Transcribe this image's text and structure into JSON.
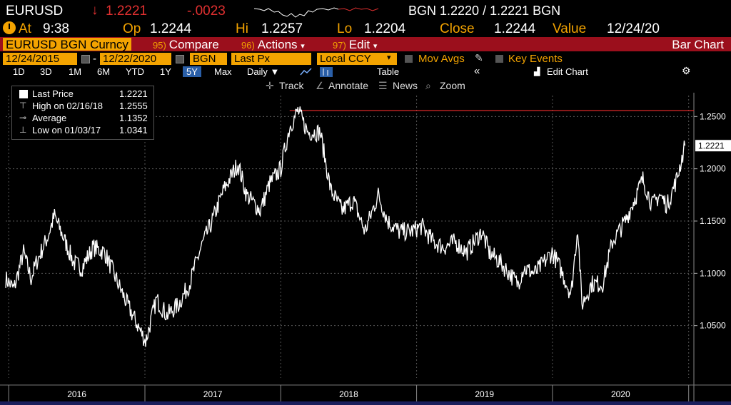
{
  "header": {
    "symbol": "EURUSD",
    "arrow": "↓",
    "last": "1.2221",
    "change": "-.0023",
    "bid_ask": "BGN 1.2220 / 1.2221 BGN"
  },
  "quote": {
    "at_label": "At",
    "at_value": "9:38",
    "op_label": "Op",
    "op_value": "1.2244",
    "hi_label": "Hi",
    "hi_value": "1.2257",
    "lo_label": "Lo",
    "lo_value": "1.2204",
    "close_label": "Close",
    "close_value": "1.2244",
    "value_label": "Value",
    "value_value": "12/24/20"
  },
  "menubar": {
    "ticker": "EURUSD BGN Curncy",
    "compare_num": "95)",
    "compare": "Compare",
    "actions_num": "96)",
    "actions": "Actions",
    "edit_num": "97)",
    "edit": "Edit",
    "bar_chart": "Bar Chart"
  },
  "params": {
    "start_date": "12/24/2015",
    "dash": "-",
    "end_date": "12/22/2020",
    "source": "BGN",
    "field": "Last Px",
    "ccy": "Local CCY",
    "mov_avgs": "Mov Avgs",
    "key_events": "Key Events"
  },
  "periods": [
    "1D",
    "3D",
    "1M",
    "6M",
    "YTD",
    "1Y",
    "5Y",
    "Max"
  ],
  "selected_period": "5Y",
  "interval": "Daily ▼",
  "table_label": "Table",
  "collapse": "«",
  "edit_chart": "Edit Chart",
  "tools": {
    "track": "Track",
    "annotate": "Annotate",
    "news": "News",
    "zoom": "Zoom"
  },
  "legend": [
    {
      "name": "Last Price",
      "value": "1.2221"
    },
    {
      "name": "High on 02/16/18",
      "value": "1.2555"
    },
    {
      "name": "Average",
      "value": "1.1352"
    },
    {
      "name": "Low on 01/03/17",
      "value": "1.0341"
    }
  ],
  "colors": {
    "line": "#ffffff",
    "accent": "#f3a300",
    "menubar": "#9b0f1c",
    "down": "#e03030",
    "highline": "#e02a2a"
  },
  "chart_data": {
    "type": "line",
    "series": [
      {
        "name": "Last Price",
        "x": [
          "2015-12-24",
          "2016-01-15",
          "2016-02-10",
          "2016-03-01",
          "2016-03-15",
          "2016-04-15",
          "2016-05-03",
          "2016-06-01",
          "2016-06-24",
          "2016-07-15",
          "2016-08-15",
          "2016-09-15",
          "2016-10-15",
          "2016-11-15",
          "2016-12-20",
          "2017-01-03",
          "2017-02-01",
          "2017-03-01",
          "2017-04-01",
          "2017-05-01",
          "2017-06-01",
          "2017-07-01",
          "2017-08-01",
          "2017-09-08",
          "2017-10-01",
          "2017-11-07",
          "2017-12-01",
          "2018-01-01",
          "2018-01-25",
          "2018-02-16",
          "2018-03-15",
          "2018-04-17",
          "2018-05-15",
          "2018-06-15",
          "2018-07-15",
          "2018-08-15",
          "2018-09-20",
          "2018-10-15",
          "2018-11-15",
          "2018-12-15",
          "2019-01-15",
          "2019-02-15",
          "2019-03-15",
          "2019-04-15",
          "2019-05-15",
          "2019-06-25",
          "2019-07-15",
          "2019-08-15",
          "2019-09-30",
          "2019-10-15",
          "2019-11-15",
          "2019-12-31",
          "2020-01-15",
          "2020-02-20",
          "2020-03-09",
          "2020-03-20",
          "2020-04-15",
          "2020-05-15",
          "2020-06-10",
          "2020-07-15",
          "2020-08-31",
          "2020-09-25",
          "2020-10-15",
          "2020-11-04",
          "2020-11-30",
          "2020-12-22"
        ],
        "values": [
          1.095,
          1.085,
          1.12,
          1.095,
          1.11,
          1.135,
          1.155,
          1.13,
          1.11,
          1.105,
          1.125,
          1.12,
          1.095,
          1.07,
          1.045,
          1.035,
          1.075,
          1.06,
          1.07,
          1.09,
          1.125,
          1.15,
          1.18,
          1.205,
          1.175,
          1.16,
          1.185,
          1.2,
          1.24,
          1.2555,
          1.235,
          1.235,
          1.18,
          1.16,
          1.17,
          1.14,
          1.175,
          1.15,
          1.14,
          1.14,
          1.145,
          1.13,
          1.125,
          1.13,
          1.12,
          1.14,
          1.12,
          1.11,
          1.09,
          1.105,
          1.1,
          1.12,
          1.11,
          1.08,
          1.145,
          1.07,
          1.09,
          1.09,
          1.13,
          1.15,
          1.19,
          1.165,
          1.175,
          1.165,
          1.19,
          1.2221
        ]
      }
    ],
    "xlabels": [
      "2016",
      "2017",
      "2018",
      "2019",
      "2020"
    ],
    "yticks": [
      "1.2500",
      "1.2000",
      "1.1500",
      "1.1000",
      "1.0500"
    ],
    "ylim": [
      1.0,
      1.27
    ],
    "high_line": 1.2555,
    "last_label": "1.2221",
    "grid": true
  }
}
